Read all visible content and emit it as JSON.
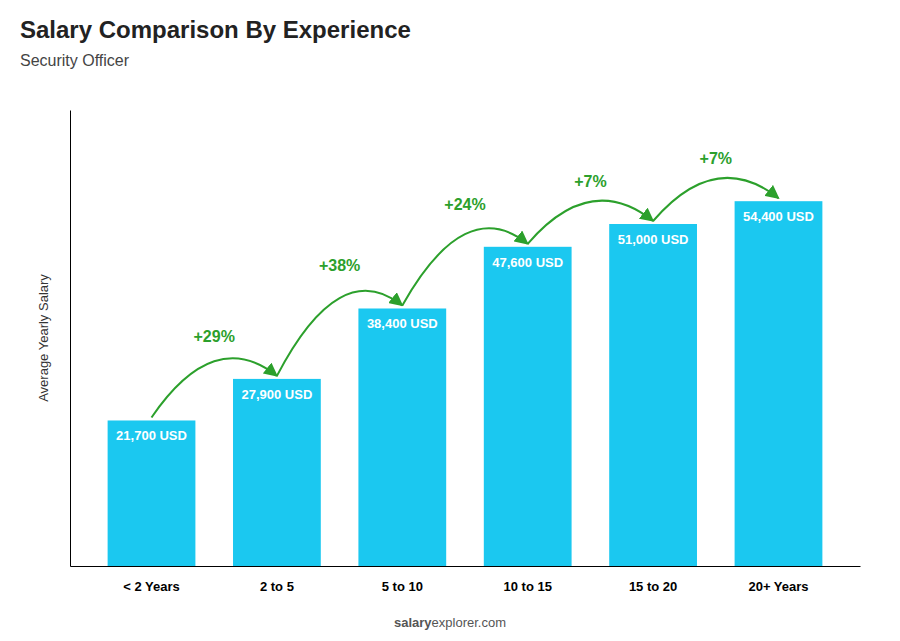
{
  "chart_data": {
    "type": "bar",
    "title": "Salary Comparison By Experience",
    "subtitle": "Security Officer",
    "categories": [
      "< 2 Years",
      "2 to 5",
      "5 to 10",
      "10 to 15",
      "15 to 20",
      "20+ Years"
    ],
    "values": [
      21700,
      27900,
      38400,
      47600,
      51000,
      54400
    ],
    "value_labels": [
      "21,700 USD",
      "27,900 USD",
      "38,400 USD",
      "47,600 USD",
      "51,000 USD",
      "54,400 USD"
    ],
    "data_labels": true,
    "color": "#1BC8F0",
    "ylabel": "Average Yearly Salary",
    "ylim": [
      0,
      68000
    ],
    "tick_labels": "x",
    "annotations": [
      "+29%",
      "+38%",
      "+24%",
      "+7%",
      "+7%"
    ],
    "watermark": [
      "salary",
      "explorer.com"
    ]
  }
}
